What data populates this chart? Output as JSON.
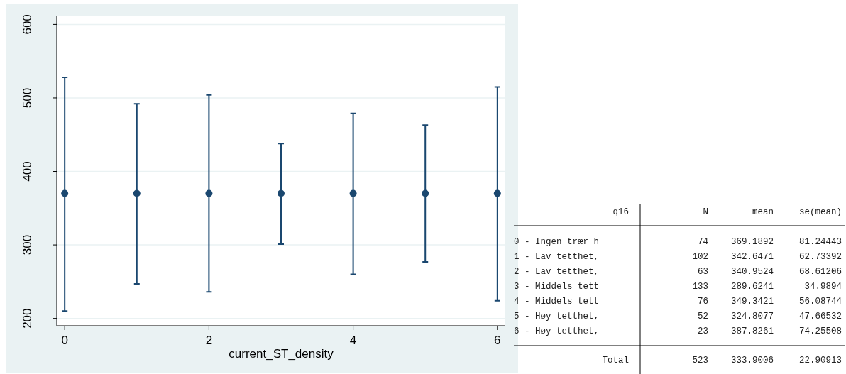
{
  "chart_data": [
    {
      "type": "scatter",
      "xlabel": "current_ST_density",
      "x": [
        0,
        1,
        2,
        3,
        4,
        5,
        6
      ],
      "series": [
        {
          "color": "#1a476f",
          "values": [
            370,
            370,
            370,
            370,
            370,
            370,
            370
          ],
          "errors": [
            [
              210,
              528
            ],
            [
              247,
              492
            ],
            [
              236,
              504
            ],
            [
              301,
              438
            ],
            [
              260,
              479
            ],
            [
              277,
              463
            ],
            [
              224,
              515
            ]
          ]
        }
      ],
      "xlim": [
        -0.11,
        6.11
      ],
      "xticks": [
        0,
        2,
        4,
        6
      ],
      "ylim": [
        190,
        611
      ],
      "yticks": [
        200,
        300,
        400,
        500,
        600
      ],
      "grid": "y",
      "marker": "circle"
    },
    {
      "type": "other",
      "annotations": [
        "q16",
        "N",
        "mean",
        "se(mean)",
        "0 - Ingen trær h",
        "74",
        "369.1892",
        "81.24443",
        "1 - Lav tetthet,",
        "102",
        "342.6471",
        "62.73392",
        "2 - Lav tetthet,",
        "63",
        "340.9524",
        "68.61206",
        "3 - Middels tett",
        "133",
        "289.6241",
        "34.9894",
        "4 - Middels tett",
        "76",
        "349.3421",
        "56.08744",
        "5 - Høy tetthet,",
        "52",
        "324.8077",
        "47.66532",
        "6 - Høy tetthet,",
        "23",
        "387.8261",
        "74.25508",
        "Total",
        "523",
        "333.9006",
        "22.90913"
      ]
    }
  ]
}
